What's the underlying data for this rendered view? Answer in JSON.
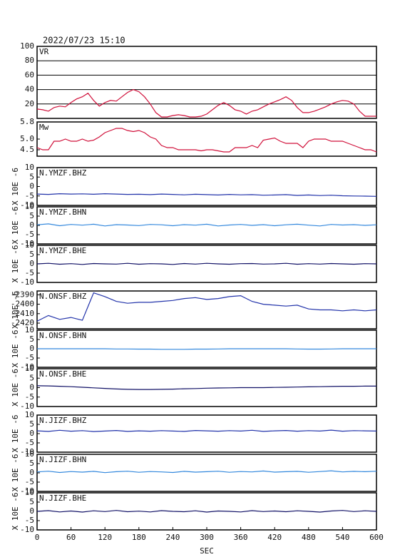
{
  "chart_data": [
    {
      "type": "line",
      "title": "2022/07/23 15:10",
      "grid": true,
      "xlim": [
        0,
        600
      ],
      "ylim": [
        0,
        100
      ],
      "yticks": [
        20,
        40,
        60,
        80,
        100
      ],
      "x": [
        0,
        10,
        20,
        30,
        40,
        50,
        60,
        70,
        80,
        90,
        100,
        110,
        120,
        130,
        140,
        150,
        160,
        170,
        180,
        190,
        200,
        210,
        220,
        230,
        240,
        250,
        260,
        270,
        280,
        290,
        300,
        310,
        320,
        330,
        340,
        350,
        360,
        370,
        380,
        390,
        400,
        410,
        420,
        430,
        440,
        450,
        460,
        470,
        480,
        490,
        500,
        510,
        520,
        530,
        540,
        550,
        560,
        570,
        580,
        590,
        600
      ],
      "series": [
        {
          "name": "VR",
          "color": "#d0103a",
          "values": [
            13,
            12,
            10,
            15,
            17,
            16,
            22,
            27,
            30,
            35,
            25,
            17,
            22,
            25,
            24,
            30,
            36,
            40,
            37,
            30,
            20,
            8,
            2,
            2,
            4,
            5,
            4,
            2,
            2,
            3,
            6,
            12,
            18,
            22,
            18,
            12,
            10,
            6,
            10,
            12,
            16,
            20,
            23,
            26,
            30,
            25,
            15,
            8,
            8,
            10,
            13,
            16,
            20,
            23,
            25,
            24,
            20,
            10,
            3,
            3,
            3
          ]
        }
      ]
    },
    {
      "type": "line",
      "grid": false,
      "xlim": [
        0,
        600
      ],
      "ylim": [
        4.2,
        5.8
      ],
      "yticks": [
        4.5,
        {
          "value": 5,
          "label": "5.0"
        },
        5.8
      ],
      "x": [
        0,
        10,
        20,
        30,
        40,
        50,
        60,
        70,
        80,
        90,
        100,
        110,
        120,
        130,
        140,
        150,
        160,
        170,
        180,
        190,
        200,
        210,
        220,
        230,
        240,
        250,
        260,
        270,
        280,
        290,
        300,
        310,
        320,
        330,
        340,
        350,
        360,
        370,
        380,
        390,
        400,
        410,
        420,
        430,
        440,
        450,
        460,
        470,
        480,
        490,
        500,
        510,
        520,
        530,
        540,
        550,
        560,
        570,
        580,
        590,
        600
      ],
      "series": [
        {
          "name": "Mw",
          "color": "#d0103a",
          "values": [
            4.6,
            4.5,
            4.5,
            4.9,
            4.9,
            5.0,
            4.9,
            4.9,
            5.0,
            4.9,
            4.95,
            5.1,
            5.3,
            5.4,
            5.5,
            5.5,
            5.4,
            5.35,
            5.4,
            5.3,
            5.1,
            5.0,
            4.7,
            4.6,
            4.6,
            4.5,
            4.5,
            4.5,
            4.5,
            4.45,
            4.5,
            4.5,
            4.45,
            4.4,
            4.4,
            4.6,
            4.6,
            4.6,
            4.7,
            4.6,
            4.95,
            5.0,
            5.05,
            4.9,
            4.8,
            4.8,
            4.8,
            4.6,
            4.9,
            5.0,
            5.0,
            5.0,
            4.9,
            4.9,
            4.9,
            4.8,
            4.7,
            4.6,
            4.5,
            4.5,
            4.4
          ]
        }
      ]
    },
    {
      "type": "line",
      "ylabel": "X 10E -6",
      "xlim": [
        0,
        600
      ],
      "ylim": [
        -10,
        10
      ],
      "yticks": [
        -10,
        -5,
        0,
        5,
        10
      ],
      "x": [
        0,
        20,
        40,
        60,
        80,
        100,
        120,
        140,
        160,
        180,
        200,
        220,
        240,
        260,
        280,
        300,
        320,
        340,
        360,
        380,
        400,
        420,
        440,
        460,
        480,
        500,
        520,
        540,
        560,
        580,
        600
      ],
      "series": [
        {
          "name": "N.YMZF.BHZ",
          "color": "#2233aa",
          "values": [
            -4,
            -4.2,
            -3.8,
            -4,
            -3.9,
            -4.1,
            -3.8,
            -4,
            -4.2,
            -4.1,
            -4.3,
            -4,
            -4.2,
            -4.4,
            -4.1,
            -4.3,
            -4.5,
            -4.2,
            -4.4,
            -4.3,
            -4.6,
            -4.5,
            -4.3,
            -4.7,
            -4.5,
            -4.8,
            -4.6,
            -4.9,
            -5,
            -5.1,
            -5.2
          ]
        }
      ]
    },
    {
      "type": "line",
      "ylabel": "X 10E -6",
      "xlim": [
        0,
        600
      ],
      "ylim": [
        -10,
        10
      ],
      "yticks": [
        -10,
        -5,
        0,
        5,
        10
      ],
      "x": [
        0,
        20,
        40,
        60,
        80,
        100,
        120,
        140,
        160,
        180,
        200,
        220,
        240,
        260,
        280,
        300,
        320,
        340,
        360,
        380,
        400,
        420,
        440,
        460,
        480,
        500,
        520,
        540,
        560,
        580,
        600
      ],
      "series": [
        {
          "name": "N.YMZF.BHN",
          "color": "#3388dd",
          "values": [
            0.3,
            0.8,
            -0.2,
            0.5,
            0.1,
            0.6,
            -0.3,
            0.4,
            0.2,
            -0.1,
            0.5,
            0.3,
            -0.2,
            0.4,
            0.1,
            0.6,
            -0.3,
            0.2,
            0.5,
            0,
            0.4,
            -0.2,
            0.3,
            0.6,
            0.1,
            -0.3,
            0.5,
            0.2,
            0.4,
            0,
            0.3
          ]
        }
      ]
    },
    {
      "type": "line",
      "ylabel": "X 10E -6",
      "xlim": [
        0,
        600
      ],
      "ylim": [
        -10,
        10
      ],
      "yticks": [
        -10,
        -5,
        0,
        5,
        10
      ],
      "x": [
        0,
        20,
        40,
        60,
        80,
        100,
        120,
        140,
        160,
        180,
        200,
        220,
        240,
        260,
        280,
        300,
        320,
        340,
        360,
        380,
        400,
        420,
        440,
        460,
        480,
        500,
        520,
        540,
        560,
        580,
        600
      ],
      "series": [
        {
          "name": "N.YMZF.BHE",
          "color": "#111166",
          "values": [
            0,
            0.3,
            -0.2,
            0.1,
            -0.3,
            0.2,
            0,
            -0.1,
            0.3,
            -0.2,
            0.1,
            0,
            -0.3,
            0.2,
            -0.1,
            0.3,
            0,
            -0.2,
            0.1,
            0.2,
            -0.1,
            0,
            0.3,
            -0.2,
            0.1,
            -0.1,
            0.2,
            0,
            -0.2,
            0.1,
            0
          ]
        }
      ]
    },
    {
      "type": "line",
      "ylabel": "X 10E -6",
      "xlim": [
        0,
        600
      ],
      "ylim": [
        -2426,
        -2386
      ],
      "yticks": [
        -2420,
        -2410,
        -2400,
        -2390
      ],
      "x": [
        0,
        20,
        40,
        60,
        80,
        100,
        120,
        140,
        160,
        180,
        200,
        220,
        240,
        260,
        280,
        300,
        320,
        340,
        360,
        380,
        400,
        420,
        440,
        460,
        480,
        500,
        520,
        540,
        560,
        580,
        600
      ],
      "series": [
        {
          "name": "N.ONSF.BHZ",
          "color": "#2233aa",
          "values": [
            -2418,
            -2412,
            -2416,
            -2414,
            -2417,
            -2388,
            -2392,
            -2397,
            -2399,
            -2398,
            -2398,
            -2397,
            -2396,
            -2394,
            -2393,
            -2395,
            -2394,
            -2392,
            -2391,
            -2397,
            -2400,
            -2401,
            -2402,
            -2401,
            -2405,
            -2406,
            -2406,
            -2407,
            -2406,
            -2407,
            -2406
          ]
        }
      ]
    },
    {
      "type": "line",
      "ylabel": "X 10E -6",
      "xlim": [
        0,
        600
      ],
      "ylim": [
        -10,
        10
      ],
      "yticks": [
        -10,
        -5,
        0,
        5,
        10
      ],
      "x": [
        0,
        20,
        40,
        60,
        80,
        100,
        120,
        140,
        160,
        180,
        200,
        220,
        240,
        260,
        280,
        300,
        320,
        340,
        360,
        380,
        400,
        420,
        440,
        460,
        480,
        500,
        520,
        540,
        560,
        580,
        600
      ],
      "series": [
        {
          "name": "N.ONSF.BHN",
          "color": "#3388dd",
          "values": [
            0,
            0,
            0,
            0,
            0,
            0,
            0,
            -0.1,
            -0.1,
            -0.2,
            -0.2,
            -0.3,
            -0.3,
            -0.3,
            -0.2,
            -0.2,
            -0.1,
            0,
            0,
            0,
            0,
            0,
            0,
            -0.1,
            -0.2,
            -0.2,
            -0.1,
            0,
            0,
            0,
            0
          ]
        }
      ]
    },
    {
      "type": "line",
      "ylabel": "X 10E -6",
      "xlim": [
        0,
        600
      ],
      "ylim": [
        -10,
        10
      ],
      "yticks": [
        -10,
        -5,
        0,
        5,
        10
      ],
      "x": [
        0,
        20,
        40,
        60,
        80,
        100,
        120,
        140,
        160,
        180,
        200,
        220,
        240,
        260,
        280,
        300,
        320,
        340,
        360,
        380,
        400,
        420,
        440,
        460,
        480,
        500,
        520,
        540,
        560,
        580,
        600
      ],
      "series": [
        {
          "name": "N.ONSF.BHE",
          "color": "#111166",
          "values": [
            1,
            0.9,
            0.7,
            0.5,
            0.2,
            -0.1,
            -0.4,
            -0.7,
            -0.9,
            -1,
            -1,
            -0.9,
            -0.8,
            -0.6,
            -0.5,
            -0.3,
            -0.2,
            -0.1,
            0,
            0,
            0,
            0.1,
            0.2,
            0.3,
            0.4,
            0.5,
            0.6,
            0.7,
            0.7,
            0.8,
            0.8
          ]
        }
      ]
    },
    {
      "type": "line",
      "ylabel": "X 10E -6",
      "xlim": [
        0,
        600
      ],
      "ylim": [
        -10,
        10
      ],
      "yticks": [
        -10,
        -5,
        0,
        5,
        10
      ],
      "x": [
        0,
        20,
        40,
        60,
        80,
        100,
        120,
        140,
        160,
        180,
        200,
        220,
        240,
        260,
        280,
        300,
        320,
        340,
        360,
        380,
        400,
        420,
        440,
        460,
        480,
        500,
        520,
        540,
        560,
        580,
        600
      ],
      "series": [
        {
          "name": "N.JIZF.BHZ",
          "color": "#2233aa",
          "values": [
            1.5,
            1.2,
            1.8,
            1.3,
            1.6,
            1.1,
            1.4,
            1.7,
            1.2,
            1.5,
            1.3,
            1.6,
            1.4,
            1.2,
            1.7,
            1.5,
            1.3,
            1.6,
            1.4,
            1.8,
            1.2,
            1.5,
            1.7,
            1.3,
            1.6,
            1.4,
            1.9,
            1.3,
            1.6,
            1.5,
            1.4
          ]
        }
      ]
    },
    {
      "type": "line",
      "ylabel": "X 10E -6",
      "xlim": [
        0,
        600
      ],
      "ylim": [
        -10,
        10
      ],
      "yticks": [
        -10,
        -5,
        0,
        5,
        10
      ],
      "x": [
        0,
        20,
        40,
        60,
        80,
        100,
        120,
        140,
        160,
        180,
        200,
        220,
        240,
        260,
        280,
        300,
        320,
        340,
        360,
        380,
        400,
        420,
        440,
        460,
        480,
        500,
        520,
        540,
        560,
        580,
        600
      ],
      "series": [
        {
          "name": "N.JIZF.BHN",
          "color": "#3388dd",
          "values": [
            0.5,
            0.9,
            0.2,
            0.7,
            0.4,
            0.8,
            0.1,
            0.6,
            0.9,
            0.3,
            0.7,
            0.5,
            0.2,
            0.8,
            0.4,
            0.6,
            0.9,
            0.3,
            0.7,
            0.5,
            1,
            0.4,
            0.6,
            0.8,
            0.3,
            0.7,
            1.1,
            0.5,
            0.8,
            0.6,
            0.9
          ]
        }
      ]
    },
    {
      "type": "line",
      "ylabel": "X 10E -6",
      "xlabel": "SEC",
      "xlim": [
        0,
        600
      ],
      "xticks": [
        0,
        60,
        120,
        180,
        240,
        300,
        360,
        420,
        480,
        540,
        600
      ],
      "ylim": [
        -10,
        10
      ],
      "yticks": [
        -10,
        -5,
        0,
        5,
        10
      ],
      "x": [
        0,
        20,
        40,
        60,
        80,
        100,
        120,
        140,
        160,
        180,
        200,
        220,
        240,
        260,
        280,
        300,
        320,
        340,
        360,
        380,
        400,
        420,
        440,
        460,
        480,
        500,
        520,
        540,
        560,
        580,
        600
      ],
      "series": [
        {
          "name": "N.JIZF.BHE",
          "color": "#111166",
          "values": [
            0,
            0.4,
            -0.3,
            0.2,
            -0.4,
            0.3,
            -0.1,
            0.5,
            -0.2,
            0.1,
            -0.3,
            0.4,
            0,
            -0.2,
            0.3,
            -0.4,
            0.2,
            0,
            -0.3,
            0.4,
            -0.1,
            0.2,
            -0.2,
            0.3,
            0,
            -0.4,
            0.2,
            0.5,
            -0.1,
            0.3,
            0
          ]
        }
      ]
    }
  ]
}
